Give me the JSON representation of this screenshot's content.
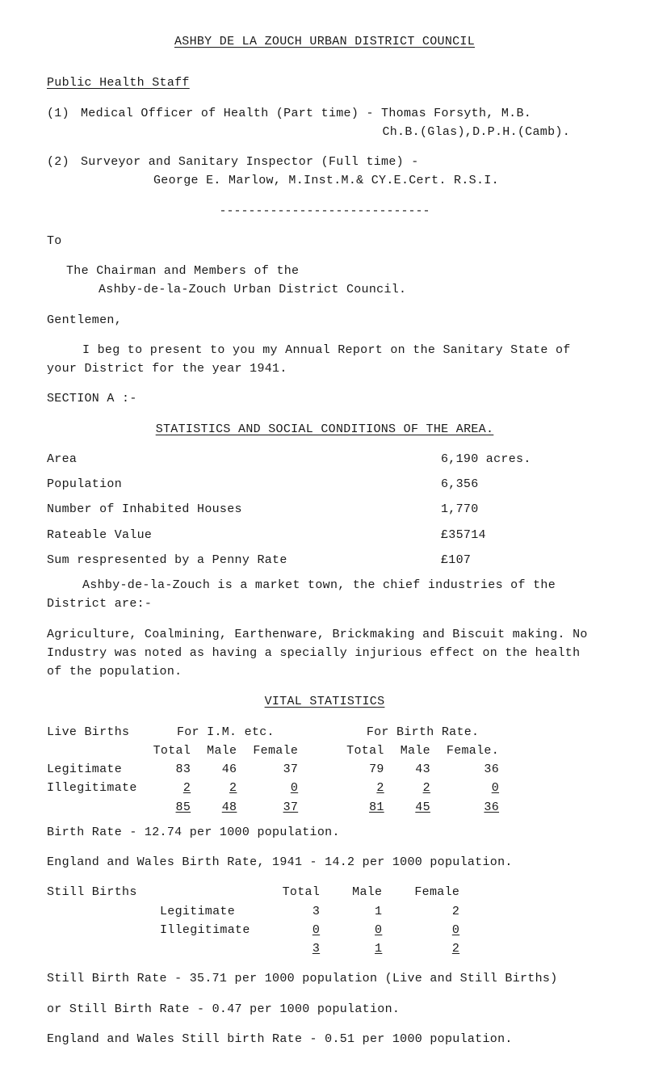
{
  "title": "ASHBY DE LA ZOUCH URBAN DISTRICT COUNCIL",
  "sectionA_label": "Public Health Staff",
  "item1": {
    "num": "(1)",
    "l1": "Medical Officer of Health (Part time) - Thomas Forsyth, M.B.",
    "l2": "Ch.B.(Glas),D.P.H.(Camb)."
  },
  "item2": {
    "num": "(2)",
    "l1": "Surveyor and Sanitary Inspector (Full time) -",
    "l2": "George E. Marlow, M.Inst.M.& CY.E.Cert. R.S.I."
  },
  "dashline": "-----------------------------",
  "to": "To",
  "chairman_l1": "The Chairman and Members of the",
  "chairman_l2": "Ashby-de-la-Zouch Urban District Council.",
  "gentlemen": "Gentlemen,",
  "beg": "I beg to present to you my Annual Report on the Sanitary State of your District for the year 1941.",
  "section_a": "SECTION A :-",
  "stats_heading": "STATISTICS AND SOCIAL CONDITIONS OF THE AREA.",
  "stats_rows": [
    {
      "l": "Area",
      "r": "6,190 acres."
    },
    {
      "l": "Population",
      "r": "6,356"
    },
    {
      "l": "Number of Inhabited Houses",
      "r": "1,770"
    },
    {
      "l": "Rateable Value",
      "r": "£35714"
    },
    {
      "l": "Sum respresented by a Penny Rate",
      "r": "£107"
    }
  ],
  "market": "Ashby-de-la-Zouch is a market town, the chief industries of the District are:-",
  "agri": "Agriculture, Coalmining, Earthenware, Brickmaking and Biscuit making. No Industry was noted as having a specially injurious effect on the health of the population.",
  "vital_heading": "VITAL STATISTICS",
  "vs": {
    "h1": "Live Births",
    "h2a": "For I.M. etc.",
    "h2b": "For Birth Rate.",
    "cols": [
      "",
      "Total",
      "Male",
      "Female",
      "Total",
      "Male",
      "Female."
    ],
    "rows": [
      [
        "Legitimate",
        "83",
        "46",
        "37",
        "79",
        "43",
        "36"
      ],
      [
        "Illegitimate",
        "2",
        "2",
        "0",
        "2",
        "2",
        "0"
      ]
    ],
    "sum": [
      "",
      "85",
      "48",
      "37",
      "81",
      "45",
      "36"
    ]
  },
  "birth_rate": "Birth Rate  -  12.74 per 1000 population.",
  "eng_wales": "England and Wales Birth Rate, 1941 - 14.2 per 1000 population.",
  "still_births_label": "Still Births",
  "sb_cols": [
    "",
    "Total",
    "Male",
    "Female"
  ],
  "sb_rows": [
    [
      "Legitimate",
      "3",
      "1",
      "2"
    ],
    [
      "Illegitimate",
      "0",
      "0",
      "0"
    ]
  ],
  "sb_sum": [
    "",
    "3",
    "1",
    "2"
  ],
  "sbr1": "Still Birth Rate  -  35.71 per 1000 population (Live and Still Births)",
  "sbr2": "or Still Birth Rate  -  0.47 per 1000 population.",
  "sbr3": "England and Wales Still birth Rate  -  0.51 per 1000 population."
}
